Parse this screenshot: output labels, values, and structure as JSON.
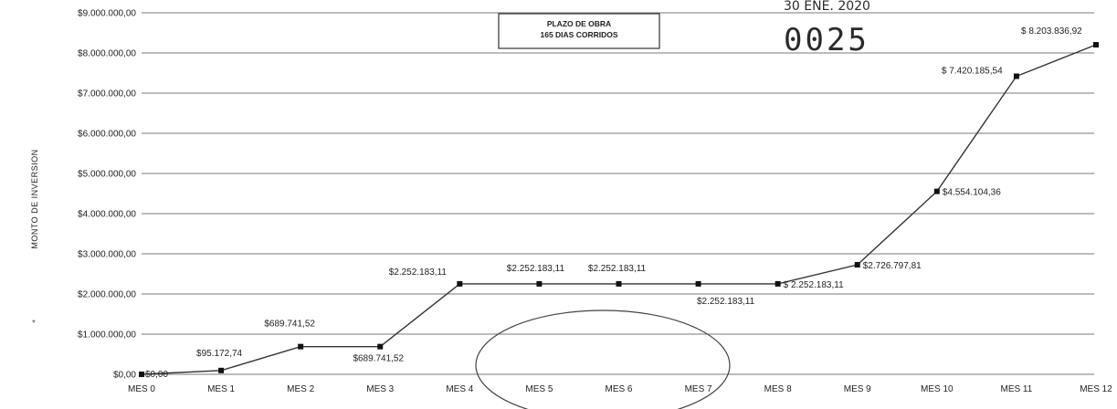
{
  "chart_data": {
    "type": "line",
    "title": "",
    "xlabel": "",
    "ylabel": "MONTO DE INVERSION",
    "categories": [
      "MES 0",
      "MES 1",
      "MES 2",
      "MES 3",
      "MES 4",
      "MES 5",
      "MES 6",
      "MES 7",
      "MES 8",
      "MES 9",
      "MES 10",
      "MES 11",
      "MES 12"
    ],
    "series": [
      {
        "values": [
          0,
          95172.74,
          689741.52,
          689741.52,
          2252183.11,
          2252183.11,
          2252183.11,
          2252183.11,
          2252183.11,
          2726797.81,
          4554104.36,
          7420185.54,
          8203836.92
        ]
      }
    ],
    "point_labels": [
      "$0,00",
      "$95.172,74",
      "$689.741,52",
      "$689.741,52",
      "$2.252.183,11",
      "$2.252.183,11",
      "$2.252.183,11",
      "$2.252.183,11",
      "$ 2.252.183,11",
      "$2.726.797,81",
      "$4.554.104,36",
      "$ 7.420.185,54",
      "$ 8.203.836,92"
    ],
    "ylim": [
      0,
      9000000
    ],
    "yticks": [
      0,
      1000000,
      2000000,
      3000000,
      4000000,
      5000000,
      6000000,
      7000000,
      8000000,
      9000000
    ],
    "ytick_labels": [
      "$0,00",
      "$1.000.000,00",
      "$2.000.000,00",
      "$3.000.000,00",
      "$4.000.000,00",
      "$5.000.000,00",
      "$6.000.000,00",
      "$7.000.000,00",
      "$8.000.000,00",
      "$9.000.000,00"
    ],
    "grid": true,
    "legend": "none",
    "colors": {
      "line": "#333333",
      "grid": "#7a7a7a",
      "marker": "#111111"
    }
  },
  "annotations": {
    "plazo_box": [
      "PLAZO DE OBRA",
      "165 DIAS CORRIDOS"
    ],
    "stamp_date": "30 ENE. 2020",
    "stamp_number": "0025"
  }
}
